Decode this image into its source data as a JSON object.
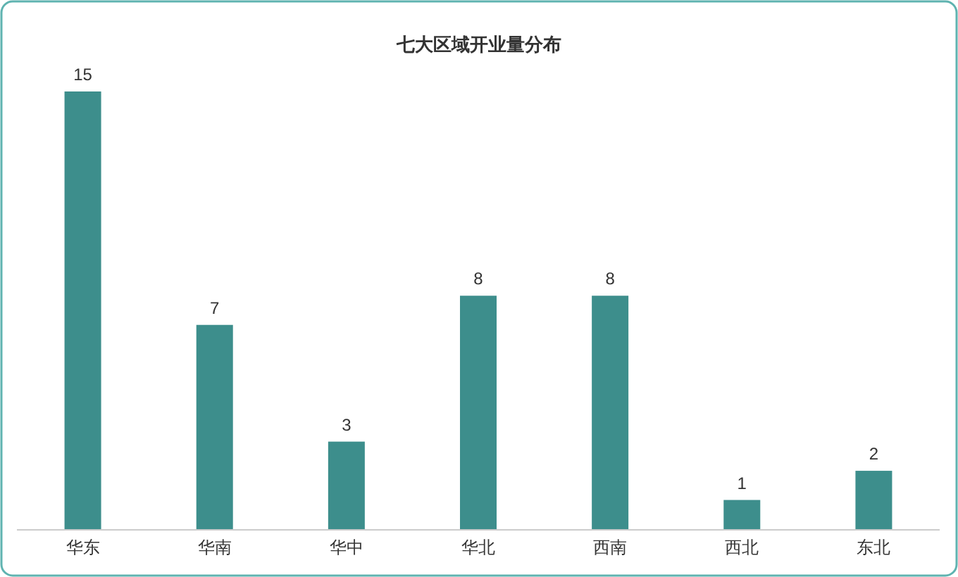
{
  "chart_data": {
    "type": "bar",
    "title": "七大区域开业量分布",
    "categories": [
      "华东",
      "华南",
      "华中",
      "华北",
      "西南",
      "西北",
      "东北"
    ],
    "values": [
      15,
      7,
      3,
      8,
      8,
      1,
      2
    ],
    "color": "#3d8e8c",
    "data_labels": true
  }
}
